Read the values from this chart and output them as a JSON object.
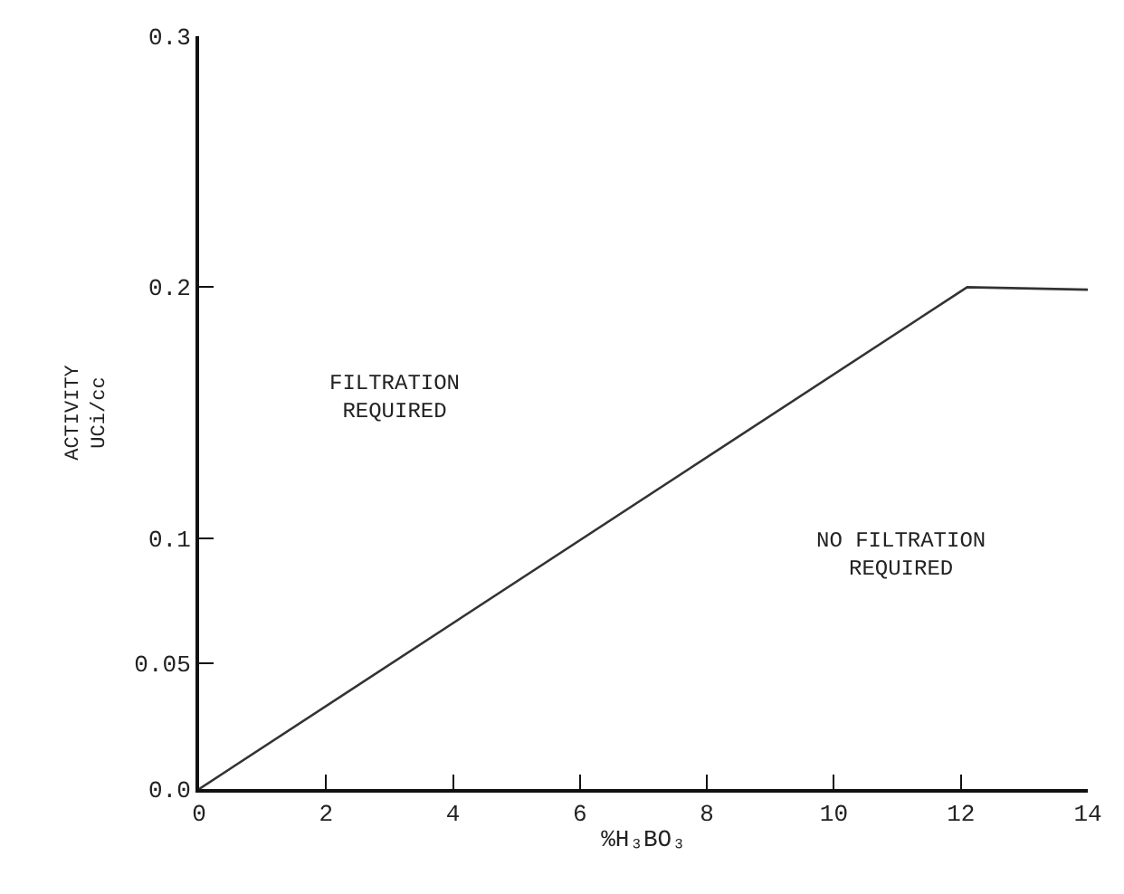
{
  "chart_data": {
    "type": "line",
    "xlabel": "%H₃BO₃",
    "ylabel": "ACTIVITY\nUCi/cc",
    "x": [
      0,
      12.1,
      14
    ],
    "series": [
      {
        "color": "#333333",
        "values": [
          0,
          0.2,
          0.199
        ]
      }
    ],
    "xlim": [
      0,
      14
    ],
    "xticks": [
      0,
      2,
      4,
      6,
      8,
      10,
      12,
      14
    ],
    "ylim": [
      0,
      0.3
    ],
    "yticks": [
      {
        "value": 0,
        "label": "0.0"
      },
      0.05,
      0.1,
      0.2,
      0.3
    ],
    "marker": "none",
    "line_style": "solid",
    "annotations": [
      "FILTRATION\nREQUIRED",
      "NO FILTRATION\nREQUIRED"
    ]
  }
}
